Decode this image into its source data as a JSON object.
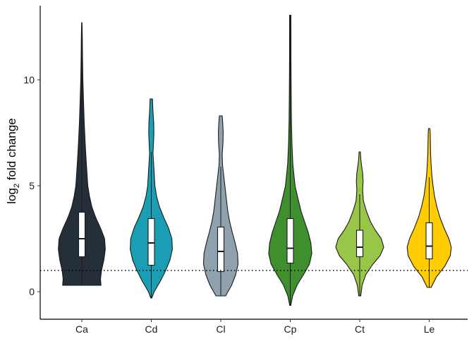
{
  "chart_data": {
    "type": "violin",
    "ylabel_main": "log",
    "ylabel_sub": "2",
    "ylabel_rest": " fold change",
    "xlabel": "",
    "ylim": [
      -1.3,
      13.5
    ],
    "yticks": [
      0,
      5,
      10
    ],
    "reference_line": 1,
    "categories": [
      "Ca",
      "Cd",
      "Cl",
      "Cp",
      "Ct",
      "Le"
    ],
    "series": [
      {
        "category": "Ca",
        "color": "#252f3a",
        "min": 0.3,
        "max": 12.7,
        "q1": 1.65,
        "median": 2.5,
        "q3": 3.75,
        "whisker_low": 0.3,
        "whisker_high": 12.7,
        "density": [
          [
            0.3,
            0.8
          ],
          [
            0.6,
            0.78
          ],
          [
            1.0,
            0.82
          ],
          [
            1.5,
            0.92
          ],
          [
            2.0,
            0.98
          ],
          [
            2.5,
            0.95
          ],
          [
            3.0,
            0.78
          ],
          [
            3.5,
            0.58
          ],
          [
            4.0,
            0.42
          ],
          [
            4.5,
            0.32
          ],
          [
            5.0,
            0.25
          ],
          [
            6.0,
            0.19
          ],
          [
            7.0,
            0.14
          ],
          [
            8.0,
            0.1
          ],
          [
            9.0,
            0.07
          ],
          [
            10.0,
            0.045
          ],
          [
            11.0,
            0.03
          ],
          [
            12.0,
            0.02
          ],
          [
            12.7,
            0.01
          ]
        ]
      },
      {
        "category": "Cd",
        "color": "#1a9eb3",
        "min": -0.3,
        "max": 9.1,
        "q1": 1.25,
        "median": 2.3,
        "q3": 3.45,
        "whisker_low": -0.3,
        "whisker_high": 6.6,
        "density": [
          [
            -0.3,
            0.02
          ],
          [
            0.0,
            0.12
          ],
          [
            0.5,
            0.38
          ],
          [
            1.0,
            0.6
          ],
          [
            1.5,
            0.78
          ],
          [
            2.0,
            0.88
          ],
          [
            2.5,
            0.86
          ],
          [
            3.0,
            0.72
          ],
          [
            3.5,
            0.52
          ],
          [
            4.0,
            0.34
          ],
          [
            4.5,
            0.22
          ],
          [
            5.0,
            0.15
          ],
          [
            6.0,
            0.1
          ],
          [
            6.5,
            0.07
          ],
          [
            7.0,
            0.09
          ],
          [
            7.5,
            0.11
          ],
          [
            8.0,
            0.1
          ],
          [
            8.5,
            0.07
          ],
          [
            9.1,
            0.05
          ]
        ]
      },
      {
        "category": "Cl",
        "color": "#8ea1ad",
        "min": -0.2,
        "max": 8.3,
        "q1": 0.95,
        "median": 1.9,
        "q3": 3.05,
        "whisker_low": -0.2,
        "whisker_high": 5.9,
        "density": [
          [
            -0.2,
            0.2
          ],
          [
            0.3,
            0.45
          ],
          [
            0.8,
            0.62
          ],
          [
            1.3,
            0.72
          ],
          [
            1.8,
            0.7
          ],
          [
            2.3,
            0.6
          ],
          [
            2.8,
            0.48
          ],
          [
            3.3,
            0.37
          ],
          [
            3.8,
            0.29
          ],
          [
            4.5,
            0.22
          ],
          [
            5.0,
            0.17
          ],
          [
            5.5,
            0.12
          ],
          [
            6.0,
            0.07
          ],
          [
            6.5,
            0.06
          ],
          [
            7.0,
            0.09
          ],
          [
            7.5,
            0.1
          ],
          [
            8.0,
            0.08
          ],
          [
            8.3,
            0.06
          ]
        ]
      },
      {
        "category": "Cp",
        "color": "#3f8f2f",
        "min": -0.65,
        "max": 13.05,
        "q1": 1.35,
        "median": 2.05,
        "q3": 3.45,
        "whisker_low": -0.65,
        "whisker_high": 13.05,
        "density": [
          [
            -0.65,
            0.02
          ],
          [
            -0.2,
            0.1
          ],
          [
            0.3,
            0.28
          ],
          [
            0.8,
            0.55
          ],
          [
            1.3,
            0.8
          ],
          [
            1.8,
            0.9
          ],
          [
            2.3,
            0.86
          ],
          [
            2.8,
            0.75
          ],
          [
            3.3,
            0.6
          ],
          [
            3.8,
            0.45
          ],
          [
            4.5,
            0.3
          ],
          [
            5.0,
            0.2
          ],
          [
            6.0,
            0.11
          ],
          [
            7.0,
            0.07
          ],
          [
            8.0,
            0.05
          ],
          [
            9.0,
            0.04
          ],
          [
            10.0,
            0.035
          ],
          [
            11.0,
            0.03
          ],
          [
            12.0,
            0.03
          ],
          [
            13.05,
            0.025
          ]
        ]
      },
      {
        "category": "Ct",
        "color": "#97c648",
        "min": -0.2,
        "max": 6.6,
        "q1": 1.65,
        "median": 2.1,
        "q3": 2.9,
        "whisker_low": -0.2,
        "whisker_high": 4.6,
        "density": [
          [
            -0.2,
            0.04
          ],
          [
            0.3,
            0.1
          ],
          [
            0.8,
            0.25
          ],
          [
            1.3,
            0.55
          ],
          [
            1.7,
            0.85
          ],
          [
            2.1,
            1.0
          ],
          [
            2.5,
            0.9
          ],
          [
            2.9,
            0.65
          ],
          [
            3.3,
            0.45
          ],
          [
            3.8,
            0.28
          ],
          [
            4.3,
            0.15
          ],
          [
            4.8,
            0.12
          ],
          [
            5.2,
            0.14
          ],
          [
            5.6,
            0.12
          ],
          [
            6.0,
            0.07
          ],
          [
            6.3,
            0.04
          ],
          [
            6.6,
            0.03
          ]
        ]
      },
      {
        "category": "Le",
        "color": "#ffcc00",
        "min": 0.2,
        "max": 7.7,
        "q1": 1.55,
        "median": 2.15,
        "q3": 3.25,
        "whisker_low": 0.2,
        "whisker_high": 5.4,
        "density": [
          [
            0.2,
            0.08
          ],
          [
            0.7,
            0.3
          ],
          [
            1.2,
            0.65
          ],
          [
            1.7,
            0.88
          ],
          [
            2.1,
            0.92
          ],
          [
            2.5,
            0.82
          ],
          [
            3.0,
            0.62
          ],
          [
            3.5,
            0.45
          ],
          [
            4.0,
            0.32
          ],
          [
            4.5,
            0.22
          ],
          [
            5.0,
            0.16
          ],
          [
            5.5,
            0.11
          ],
          [
            6.0,
            0.08
          ],
          [
            6.5,
            0.06
          ],
          [
            7.0,
            0.05
          ],
          [
            7.5,
            0.04
          ],
          [
            7.7,
            0.03
          ]
        ]
      }
    ]
  }
}
